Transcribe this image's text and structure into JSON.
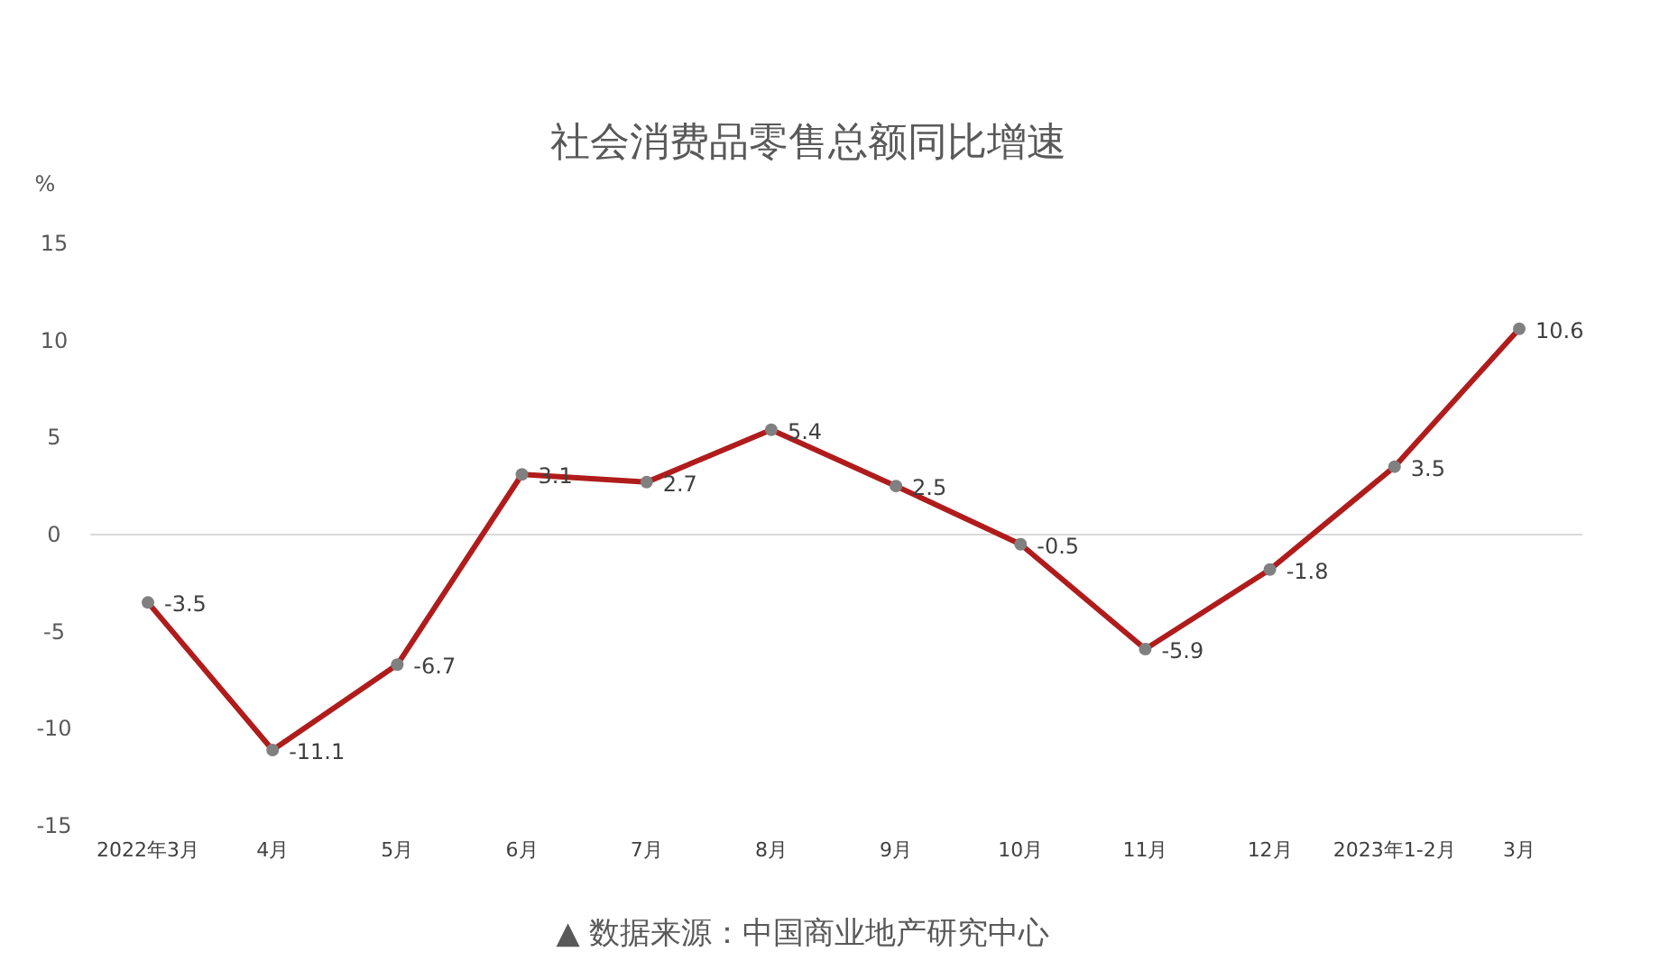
{
  "chart_data": {
    "type": "line",
    "title": "社会消费品零售总额同比增速",
    "ylabel": "%",
    "categories": [
      "2022年3月",
      "4月",
      "5月",
      "6月",
      "7月",
      "8月",
      "9月",
      "10月",
      "11月",
      "12月",
      "2023年1-2月",
      "3月"
    ],
    "values": [
      -3.5,
      -11.1,
      -6.7,
      3.1,
      2.7,
      5.4,
      2.5,
      -0.5,
      -5.9,
      -1.8,
      3.5,
      10.6
    ],
    "color": "#b01c1c",
    "marker": "circle",
    "data_labels": true,
    "ylim": [
      -15,
      15
    ],
    "yticks": [
      -15,
      -10,
      -5,
      0,
      5,
      10,
      15
    ],
    "annotations": [
      "▲ 数据来源：中国商业地产研究中心"
    ]
  }
}
